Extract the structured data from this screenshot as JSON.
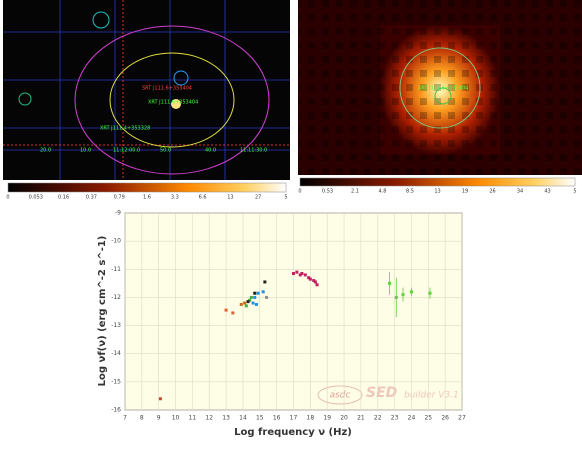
{
  "left_image": {
    "labels": [
      "XRT J111.6+353404",
      "XRT J111.4+353328",
      "SRT J111.6+353404"
    ],
    "coords": [
      "20.0",
      "10.0",
      "11:12:00.0",
      "50.0",
      "40.0",
      "11:11:30.0"
    ],
    "colorbar": [
      "0",
      "0.053",
      "0.16",
      "0.37",
      "0.79",
      "1.6",
      "3.3",
      "6.6",
      "13",
      "27",
      "5"
    ]
  },
  "right_image": {
    "labels": [
      "XRT J111.6+353404"
    ],
    "colorbar": [
      "0",
      "0.53",
      "2.1",
      "4.8",
      "8.5",
      "13",
      "19",
      "26",
      "34",
      "43",
      "5"
    ]
  },
  "watermark": {
    "brand": "asdc",
    "product": "SED",
    "tool": "builder V3.1"
  },
  "chart_data": {
    "type": "scatter",
    "xlabel": "Log frequency ν (Hz)",
    "ylabel": "Log νf(ν) (erg cm^-2 s^-1)",
    "xlim": [
      7,
      27
    ],
    "xticks": [
      7,
      8,
      9,
      10,
      11,
      12,
      13,
      14,
      15,
      16,
      17,
      18,
      19,
      20,
      21,
      22,
      23,
      24,
      25,
      26,
      27
    ],
    "ylim": [
      -16,
      -9
    ],
    "yticks": [
      -16,
      -15,
      -14,
      -13,
      -12,
      -11,
      -10,
      -9
    ],
    "grid": true,
    "series": [
      {
        "color": "#b05030",
        "x": [
          9.1
        ],
        "values": [
          -15.6
        ]
      },
      {
        "color": "#e06030",
        "x": [
          13.0,
          13.4
        ],
        "values": [
          -12.45,
          -12.55
        ]
      },
      {
        "color": "#c07020",
        "x": [
          13.9,
          14.1
        ],
        "values": [
          -12.25,
          -12.2
        ]
      },
      {
        "color": "#40b040",
        "x": [
          14.2,
          14.4,
          14.5
        ],
        "values": [
          -12.3,
          -12.1,
          -12.0
        ]
      },
      {
        "color": "#202020",
        "x": [
          14.3,
          14.7,
          15.3
        ],
        "values": [
          -12.15,
          -11.85,
          -11.45
        ]
      },
      {
        "color": "#2090e0",
        "x": [
          14.6,
          14.7,
          14.8,
          14.9,
          15.2
        ],
        "values": [
          -12.2,
          -12.0,
          -12.25,
          -11.85,
          -11.8
        ]
      },
      {
        "color": "#909090",
        "x": [
          15.4
        ],
        "values": [
          -12.0
        ]
      },
      {
        "color": "#c02060",
        "x": [
          17.0,
          17.2,
          17.4,
          17.5,
          17.7,
          17.9,
          18.0,
          18.2,
          18.3,
          18.4
        ],
        "values": [
          -11.15,
          -11.1,
          -11.2,
          -11.15,
          -11.2,
          -11.3,
          -11.35,
          -11.4,
          -11.45,
          -11.55
        ]
      },
      {
        "color": "#60d040",
        "x": [
          22.7,
          23.1,
          23.5,
          24.0,
          25.1
        ],
        "values": [
          -11.5,
          -12.0,
          -11.9,
          -11.8,
          -11.85
        ],
        "errors": [
          0.4,
          0.7,
          0.25,
          0.15,
          0.2
        ]
      }
    ]
  }
}
